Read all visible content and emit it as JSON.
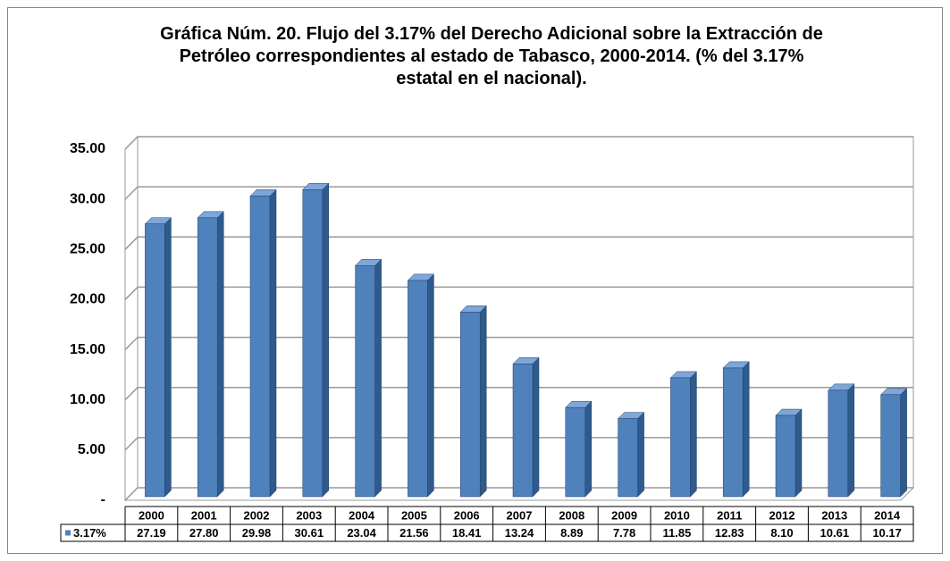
{
  "chart_data": {
    "type": "bar3d",
    "title": "Gráfica Núm. 20. Flujo del 3.17% del Derecho Adicional sobre la Extracción de Petróleo correspondientes al estado de Tabasco, 2000-2014. (% del 3.17% estatal en el nacional).",
    "categories": [
      "2000",
      "2001",
      "2002",
      "2003",
      "2004",
      "2005",
      "2006",
      "2007",
      "2008",
      "2009",
      "2010",
      "2011",
      "2012",
      "2013",
      "2014"
    ],
    "series": [
      {
        "name": "3.17%",
        "color": "#4f81bd",
        "values": [
          27.19,
          27.8,
          29.98,
          30.61,
          23.04,
          21.56,
          18.41,
          13.24,
          8.89,
          7.78,
          11.85,
          12.83,
          8.1,
          10.61,
          10.17
        ],
        "value_labels": [
          "27.19",
          "27.80",
          "29.98",
          "30.61",
          "23.04",
          "21.56",
          "18.41",
          "13.24",
          "8.89",
          "7.78",
          "11.85",
          "12.83",
          "8.10",
          "10.61",
          "10.17"
        ]
      }
    ],
    "ylim": [
      0,
      35
    ],
    "yticks": [
      {
        "value": 0,
        "label": "-"
      },
      {
        "value": 5,
        "label": "5.00"
      },
      {
        "value": 10,
        "label": "10.00"
      },
      {
        "value": 15,
        "label": "15.00"
      },
      {
        "value": 20,
        "label": "20.00"
      },
      {
        "value": 25,
        "label": "25.00"
      },
      {
        "value": 30,
        "label": "30.00"
      },
      {
        "value": 35,
        "label": "35.00"
      }
    ],
    "grid": true,
    "data_table": true
  }
}
